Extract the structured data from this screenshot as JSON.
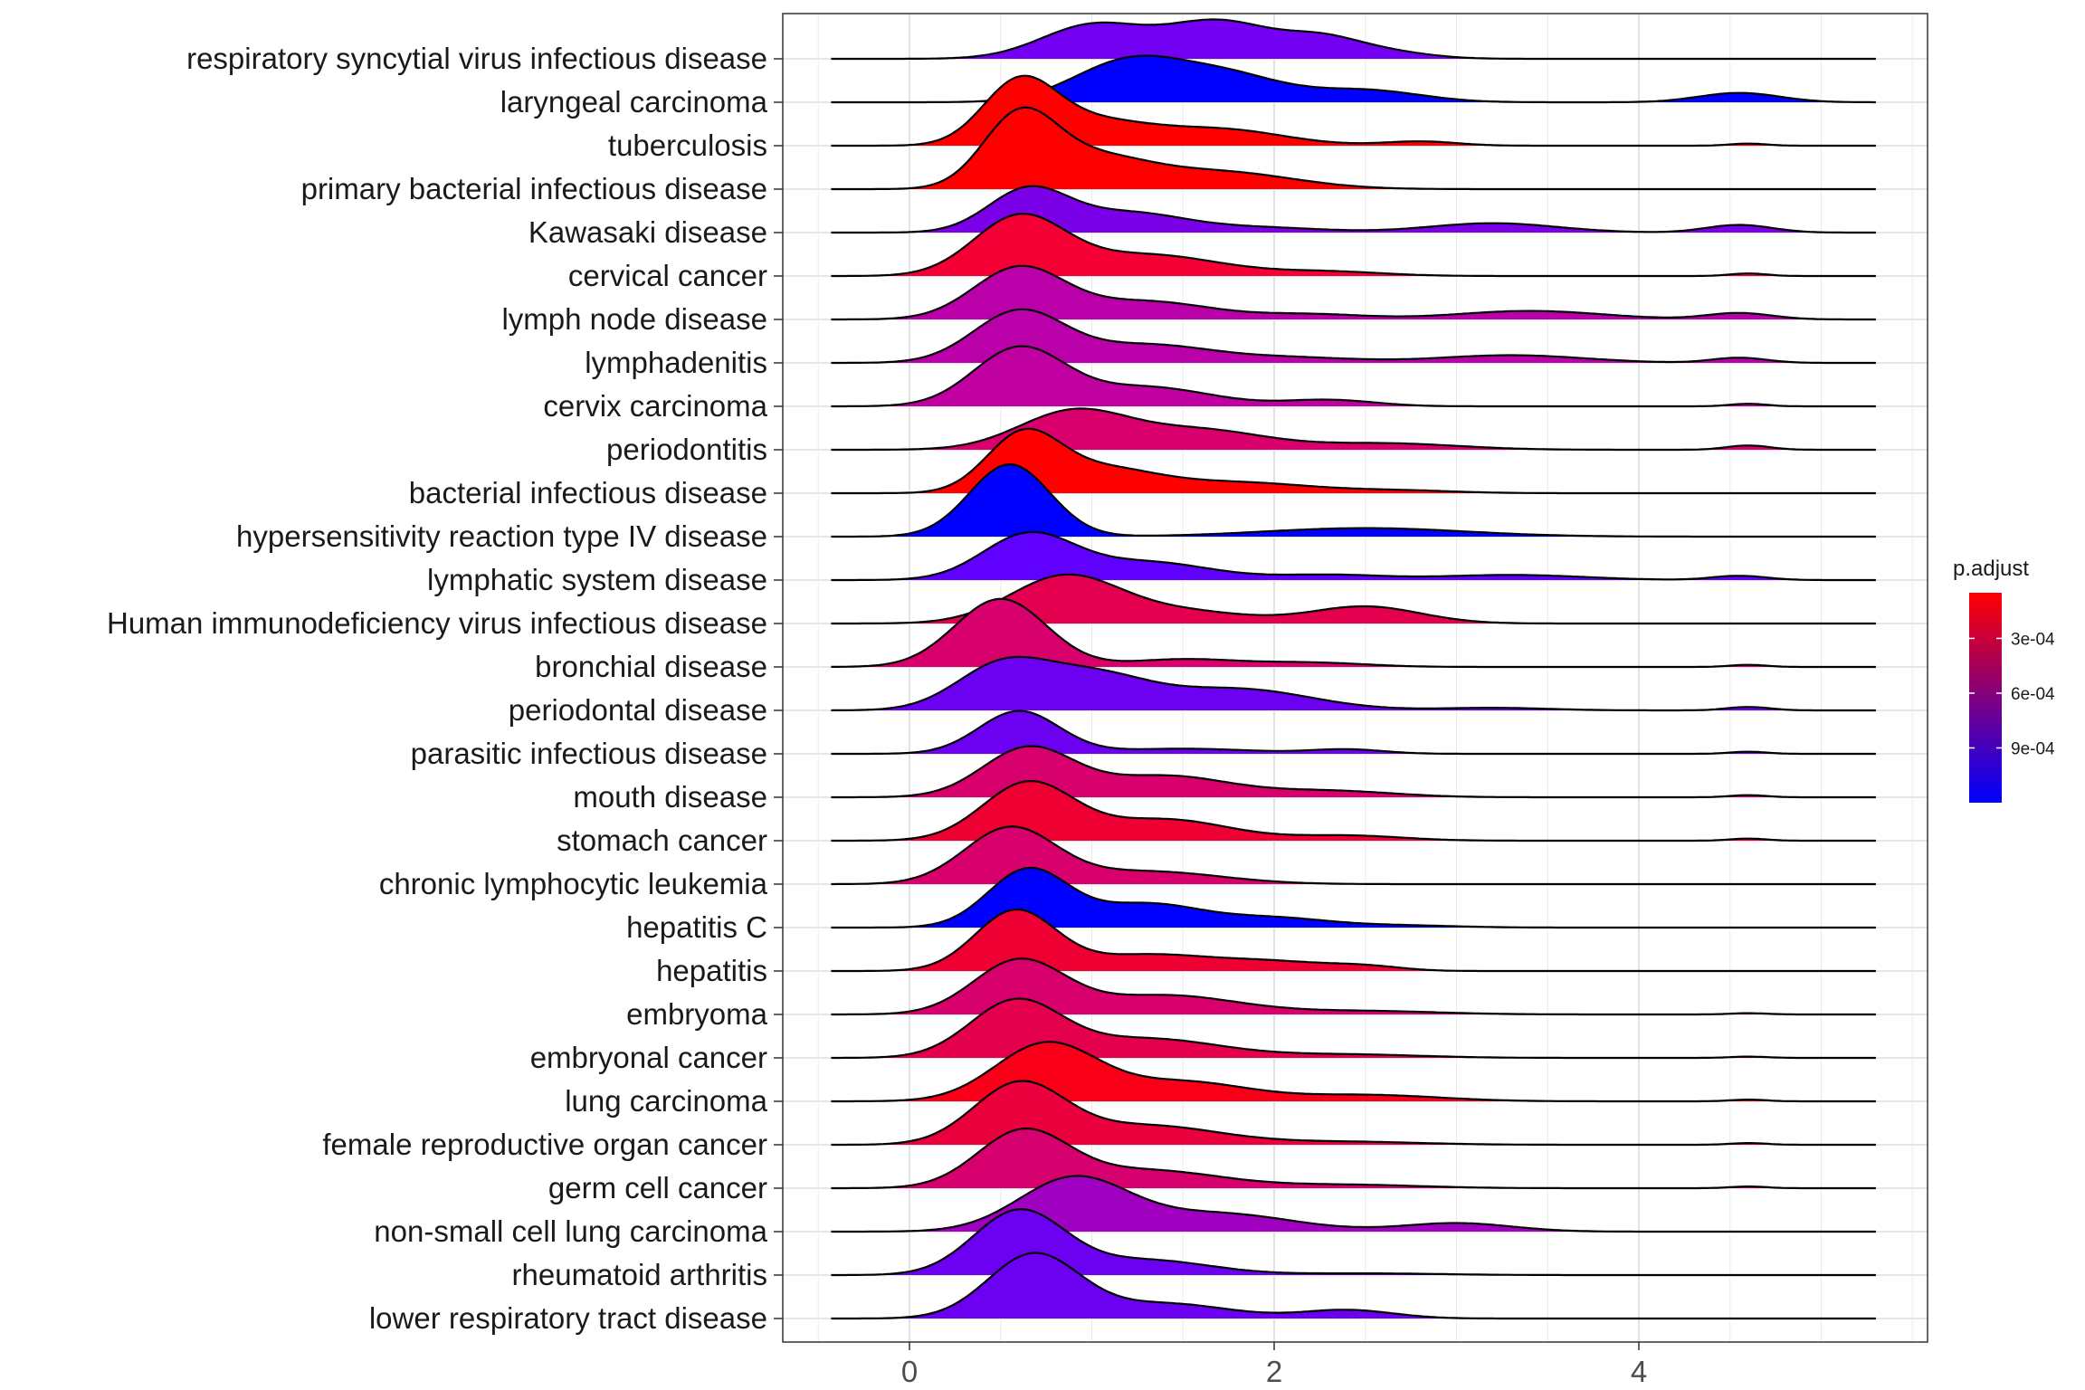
{
  "chart_data": {
    "type": "ridgeline",
    "title": "",
    "xlabel": "",
    "ylabel": "",
    "x_range": [
      -0.7,
      5.6
    ],
    "x_ticks": [
      0,
      2,
      4
    ],
    "x_tick_labels": [
      "0",
      "2",
      "4"
    ],
    "grid": true,
    "legend": {
      "title": "p.adjust",
      "position": "right",
      "tick_labels": [
        "3e-04",
        "6e-04",
        "9e-04"
      ],
      "tick_values": [
        0.0003,
        0.0006,
        0.0009
      ],
      "range": [
        5e-05,
        0.0012
      ],
      "color_low": "#FF0000",
      "color_high": "#0000FF"
    },
    "categories": [
      {
        "label": "respiratory syncytial virus infectious disease",
        "p_adjust": 0.00095,
        "color": "#7300F2",
        "peaks": [
          [
            1.0,
            0.28,
            0.78
          ],
          [
            1.7,
            0.3,
            0.88
          ],
          [
            2.25,
            0.2,
            0.35
          ],
          [
            2.55,
            0.25,
            0.2
          ]
        ]
      },
      {
        "label": "laryngeal carcinoma",
        "p_adjust": 0.00118,
        "color": "#0000FF",
        "peaks": [
          [
            1.2,
            0.3,
            0.95
          ],
          [
            1.75,
            0.3,
            0.6
          ],
          [
            2.5,
            0.3,
            0.28
          ],
          [
            4.55,
            0.22,
            0.22
          ]
        ]
      },
      {
        "label": "tuberculosis",
        "p_adjust": 6e-05,
        "color": "#FF0000",
        "peaks": [
          [
            0.6,
            0.2,
            1.4
          ],
          [
            1.0,
            0.3,
            0.55
          ],
          [
            1.7,
            0.35,
            0.38
          ],
          [
            2.8,
            0.2,
            0.1
          ],
          [
            4.6,
            0.1,
            0.05
          ]
        ]
      },
      {
        "label": "primary bacterial infectious disease",
        "p_adjust": 6e-05,
        "color": "#FF0000",
        "peaks": [
          [
            0.6,
            0.2,
            1.6
          ],
          [
            1.0,
            0.3,
            0.7
          ],
          [
            1.7,
            0.4,
            0.4
          ]
        ]
      },
      {
        "label": "Kawasaki disease",
        "p_adjust": 0.0009,
        "color": "#7A00E8",
        "peaks": [
          [
            0.65,
            0.22,
            1.0
          ],
          [
            1.2,
            0.3,
            0.45
          ],
          [
            1.9,
            0.35,
            0.12
          ],
          [
            3.2,
            0.35,
            0.22
          ],
          [
            4.55,
            0.18,
            0.18
          ]
        ]
      },
      {
        "label": "cervical cancer",
        "p_adjust": 0.00018,
        "color": "#F50035",
        "peaks": [
          [
            0.6,
            0.25,
            1.35
          ],
          [
            1.3,
            0.4,
            0.5
          ],
          [
            2.3,
            0.3,
            0.1
          ],
          [
            4.6,
            0.1,
            0.06
          ]
        ]
      },
      {
        "label": "lymph node disease",
        "p_adjust": 0.00068,
        "color": "#BA00A8",
        "peaks": [
          [
            0.6,
            0.25,
            1.2
          ],
          [
            1.3,
            0.35,
            0.42
          ],
          [
            2.2,
            0.3,
            0.12
          ],
          [
            3.4,
            0.4,
            0.2
          ],
          [
            4.55,
            0.18,
            0.15
          ]
        ]
      },
      {
        "label": "lymphadenitis",
        "p_adjust": 0.00068,
        "color": "#BA00A8",
        "peaks": [
          [
            0.6,
            0.25,
            1.2
          ],
          [
            1.3,
            0.35,
            0.42
          ],
          [
            2.1,
            0.35,
            0.12
          ],
          [
            3.3,
            0.4,
            0.18
          ],
          [
            4.55,
            0.15,
            0.12
          ]
        ]
      },
      {
        "label": "cervix carcinoma",
        "p_adjust": 0.00066,
        "color": "#C000A0",
        "peaks": [
          [
            0.6,
            0.25,
            1.35
          ],
          [
            1.3,
            0.35,
            0.45
          ],
          [
            2.3,
            0.25,
            0.15
          ],
          [
            4.6,
            0.1,
            0.06
          ]
        ]
      },
      {
        "label": "periodontitis",
        "p_adjust": 0.00048,
        "color": "#D9006E",
        "peaks": [
          [
            0.9,
            0.3,
            0.9
          ],
          [
            1.6,
            0.35,
            0.45
          ],
          [
            2.6,
            0.4,
            0.15
          ],
          [
            4.6,
            0.12,
            0.1
          ]
        ]
      },
      {
        "label": "bacterial infectious disease",
        "p_adjust": 6e-05,
        "color": "#FF0000",
        "peaks": [
          [
            0.62,
            0.2,
            1.3
          ],
          [
            1.05,
            0.3,
            0.55
          ],
          [
            1.8,
            0.4,
            0.25
          ],
          [
            2.7,
            0.3,
            0.06
          ]
        ]
      },
      {
        "label": "hypersensitivity reaction type IV disease",
        "p_adjust": 0.00118,
        "color": "#0000FF",
        "peaks": [
          [
            0.55,
            0.22,
            1.7
          ],
          [
            2.5,
            0.55,
            0.2
          ]
        ]
      },
      {
        "label": "lymphatic system disease",
        "p_adjust": 0.00102,
        "color": "#6000FF",
        "peaks": [
          [
            0.65,
            0.25,
            1.05
          ],
          [
            1.3,
            0.35,
            0.42
          ],
          [
            2.3,
            0.3,
            0.12
          ],
          [
            3.3,
            0.4,
            0.12
          ],
          [
            4.55,
            0.15,
            0.1
          ]
        ]
      },
      {
        "label": "Human immunodeficiency virus infectious disease",
        "p_adjust": 0.00035,
        "color": "#E5004F",
        "peaks": [
          [
            0.85,
            0.3,
            1.1
          ],
          [
            1.5,
            0.35,
            0.28
          ],
          [
            2.5,
            0.3,
            0.4
          ]
        ]
      },
      {
        "label": "bronchial disease",
        "p_adjust": 0.00045,
        "color": "#D8006D",
        "peaks": [
          [
            0.5,
            0.25,
            1.6
          ],
          [
            1.5,
            0.3,
            0.18
          ],
          [
            2.2,
            0.3,
            0.1
          ],
          [
            4.6,
            0.1,
            0.05
          ]
        ]
      },
      {
        "label": "periodontal disease",
        "p_adjust": 0.00098,
        "color": "#6C00F0",
        "peaks": [
          [
            0.5,
            0.25,
            1.0
          ],
          [
            1.0,
            0.3,
            0.8
          ],
          [
            1.8,
            0.4,
            0.5
          ],
          [
            3.2,
            0.3,
            0.06
          ],
          [
            4.6,
            0.12,
            0.08
          ]
        ]
      },
      {
        "label": "parasitic infectious disease",
        "p_adjust": 0.00098,
        "color": "#6C00F0",
        "peaks": [
          [
            0.6,
            0.22,
            1.0
          ],
          [
            1.5,
            0.4,
            0.12
          ],
          [
            2.4,
            0.2,
            0.1
          ],
          [
            4.6,
            0.1,
            0.05
          ]
        ]
      },
      {
        "label": "mouth disease",
        "p_adjust": 0.00045,
        "color": "#D8006D",
        "peaks": [
          [
            0.65,
            0.25,
            1.15
          ],
          [
            1.4,
            0.35,
            0.5
          ],
          [
            2.3,
            0.35,
            0.15
          ],
          [
            4.6,
            0.1,
            0.05
          ]
        ]
      },
      {
        "label": "stomach cancer",
        "p_adjust": 0.00022,
        "color": "#EE0032",
        "peaks": [
          [
            0.65,
            0.25,
            1.35
          ],
          [
            1.4,
            0.35,
            0.5
          ],
          [
            2.4,
            0.3,
            0.12
          ],
          [
            4.6,
            0.1,
            0.05
          ]
        ]
      },
      {
        "label": "chronic lymphocytic leukemia",
        "p_adjust": 0.00045,
        "color": "#D8006D",
        "peaks": [
          [
            0.55,
            0.25,
            1.3
          ],
          [
            1.3,
            0.4,
            0.3
          ]
        ]
      },
      {
        "label": "hepatitis C",
        "p_adjust": 0.00118,
        "color": "#0000FF",
        "peaks": [
          [
            0.65,
            0.22,
            1.35
          ],
          [
            1.3,
            0.3,
            0.55
          ],
          [
            2.0,
            0.3,
            0.22
          ],
          [
            2.7,
            0.3,
            0.05
          ]
        ]
      },
      {
        "label": "hepatitis",
        "p_adjust": 0.00022,
        "color": "#EE0032",
        "peaks": [
          [
            0.58,
            0.22,
            1.4
          ],
          [
            1.3,
            0.35,
            0.38
          ],
          [
            2.0,
            0.3,
            0.2
          ],
          [
            2.5,
            0.2,
            0.1
          ]
        ]
      },
      {
        "label": "embryoma",
        "p_adjust": 0.00045,
        "color": "#D8006D",
        "peaks": [
          [
            0.6,
            0.25,
            1.25
          ],
          [
            1.4,
            0.4,
            0.45
          ],
          [
            2.5,
            0.4,
            0.08
          ],
          [
            4.6,
            0.1,
            0.03
          ]
        ]
      },
      {
        "label": "embryonal cancer",
        "p_adjust": 0.00032,
        "color": "#E5004E",
        "peaks": [
          [
            0.58,
            0.25,
            1.3
          ],
          [
            1.3,
            0.4,
            0.45
          ],
          [
            2.4,
            0.4,
            0.08
          ],
          [
            4.6,
            0.1,
            0.03
          ]
        ]
      },
      {
        "label": "lung carcinoma",
        "p_adjust": 0.00012,
        "color": "#FA0018",
        "peaks": [
          [
            0.75,
            0.28,
            1.35
          ],
          [
            1.5,
            0.35,
            0.45
          ],
          [
            2.5,
            0.4,
            0.15
          ],
          [
            4.6,
            0.1,
            0.04
          ]
        ]
      },
      {
        "label": "female reproductive organ cancer",
        "p_adjust": 0.00026,
        "color": "#EB003E",
        "peaks": [
          [
            0.6,
            0.25,
            1.4
          ],
          [
            1.3,
            0.4,
            0.45
          ],
          [
            2.4,
            0.4,
            0.07
          ],
          [
            4.6,
            0.1,
            0.04
          ]
        ]
      },
      {
        "label": "germ cell cancer",
        "p_adjust": 0.00048,
        "color": "#D6006F",
        "peaks": [
          [
            0.62,
            0.25,
            1.3
          ],
          [
            1.3,
            0.4,
            0.42
          ],
          [
            2.4,
            0.4,
            0.08
          ],
          [
            4.6,
            0.1,
            0.04
          ]
        ]
      },
      {
        "label": "non-small cell lung carcinoma",
        "p_adjust": 0.00078,
        "color": "#A000C0",
        "peaks": [
          [
            0.9,
            0.3,
            1.25
          ],
          [
            1.7,
            0.4,
            0.42
          ],
          [
            3.0,
            0.3,
            0.2
          ]
        ]
      },
      {
        "label": "rheumatoid arthritis",
        "p_adjust": 0.00098,
        "color": "#6C00F0",
        "peaks": [
          [
            0.6,
            0.25,
            1.5
          ],
          [
            1.3,
            0.35,
            0.35
          ],
          [
            2.5,
            0.4,
            0.04
          ]
        ]
      },
      {
        "label": "lower respiratory tract disease",
        "p_adjust": 0.00098,
        "color": "#6C00F0",
        "peaks": [
          [
            0.68,
            0.25,
            1.5
          ],
          [
            1.4,
            0.35,
            0.35
          ],
          [
            2.4,
            0.25,
            0.2
          ]
        ]
      }
    ]
  }
}
